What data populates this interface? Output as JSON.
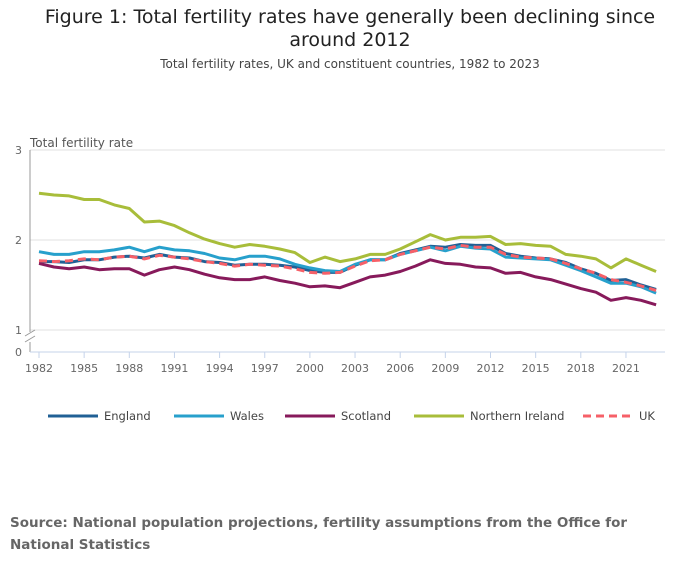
{
  "title": "Figure 1: Total fertility rates have generally been declining since around 2012",
  "subtitle": "Total fertility rates, UK and constituent countries, 1982 to 2023",
  "source": "Source: National population projections, fertility assumptions from the Office for National Statistics",
  "chart_data": {
    "type": "line",
    "ylabel": "Total fertility rate",
    "ylim": [
      0,
      3
    ],
    "y_axis_break": true,
    "yticks": [
      "0",
      "1",
      "2",
      "3"
    ],
    "xticks": [
      "1982",
      "1985",
      "1988",
      "1991",
      "1994",
      "1997",
      "2000",
      "2003",
      "2006",
      "2009",
      "2012",
      "2015",
      "2018",
      "2021"
    ],
    "x": [
      1982,
      1983,
      1984,
      1985,
      1986,
      1987,
      1988,
      1989,
      1990,
      1991,
      1992,
      1993,
      1994,
      1995,
      1996,
      1997,
      1998,
      1999,
      2000,
      2001,
      2002,
      2003,
      2004,
      2005,
      2006,
      2007,
      2008,
      2009,
      2010,
      2011,
      2012,
      2013,
      2014,
      2015,
      2016,
      2017,
      2018,
      2019,
      2020,
      2021,
      2022,
      2023
    ],
    "grid": true,
    "legend": "bottom",
    "series": [
      {
        "name": "England",
        "color": "#206095",
        "dashed": false,
        "values": [
          1.76,
          1.76,
          1.75,
          1.78,
          1.78,
          1.81,
          1.82,
          1.8,
          1.84,
          1.81,
          1.8,
          1.76,
          1.75,
          1.72,
          1.73,
          1.73,
          1.72,
          1.7,
          1.66,
          1.64,
          1.64,
          1.72,
          1.78,
          1.78,
          1.85,
          1.89,
          1.93,
          1.92,
          1.95,
          1.94,
          1.94,
          1.85,
          1.82,
          1.8,
          1.79,
          1.75,
          1.68,
          1.63,
          1.55,
          1.56,
          1.5,
          1.45
        ]
      },
      {
        "name": "Wales",
        "color": "#27a0cc",
        "dashed": false,
        "values": [
          1.87,
          1.84,
          1.84,
          1.87,
          1.87,
          1.89,
          1.92,
          1.87,
          1.92,
          1.89,
          1.88,
          1.85,
          1.8,
          1.78,
          1.82,
          1.82,
          1.79,
          1.73,
          1.69,
          1.66,
          1.65,
          1.73,
          1.78,
          1.78,
          1.84,
          1.88,
          1.92,
          1.88,
          1.93,
          1.91,
          1.9,
          1.81,
          1.8,
          1.79,
          1.78,
          1.72,
          1.66,
          1.59,
          1.52,
          1.52,
          1.48,
          1.41
        ]
      },
      {
        "name": "Scotland",
        "color": "#871a5b",
        "dashed": false,
        "values": [
          1.74,
          1.7,
          1.68,
          1.7,
          1.67,
          1.68,
          1.68,
          1.61,
          1.67,
          1.7,
          1.67,
          1.62,
          1.58,
          1.56,
          1.56,
          1.59,
          1.55,
          1.52,
          1.48,
          1.49,
          1.47,
          1.53,
          1.59,
          1.61,
          1.65,
          1.71,
          1.78,
          1.74,
          1.73,
          1.7,
          1.69,
          1.63,
          1.64,
          1.59,
          1.56,
          1.51,
          1.46,
          1.42,
          1.33,
          1.36,
          1.33,
          1.28
        ]
      },
      {
        "name": "Northern Ireland",
        "color": "#a8bd3a",
        "dashed": false,
        "values": [
          2.52,
          2.5,
          2.49,
          2.45,
          2.45,
          2.39,
          2.35,
          2.2,
          2.21,
          2.16,
          2.08,
          2.01,
          1.96,
          1.92,
          1.95,
          1.93,
          1.9,
          1.86,
          1.75,
          1.81,
          1.76,
          1.79,
          1.84,
          1.84,
          1.9,
          1.98,
          2.06,
          2.0,
          2.03,
          2.03,
          2.04,
          1.95,
          1.96,
          1.94,
          1.93,
          1.84,
          1.82,
          1.79,
          1.69,
          1.79,
          1.72,
          1.65
        ]
      },
      {
        "name": "UK",
        "color": "#f66068",
        "dashed": true,
        "values": [
          1.77,
          1.76,
          1.77,
          1.79,
          1.78,
          1.81,
          1.82,
          1.79,
          1.83,
          1.81,
          1.79,
          1.76,
          1.74,
          1.71,
          1.73,
          1.72,
          1.71,
          1.68,
          1.64,
          1.63,
          1.64,
          1.71,
          1.77,
          1.78,
          1.84,
          1.88,
          1.92,
          1.9,
          1.94,
          1.92,
          1.92,
          1.84,
          1.81,
          1.8,
          1.79,
          1.74,
          1.68,
          1.63,
          1.56,
          1.53,
          1.49,
          1.44
        ]
      }
    ]
  }
}
